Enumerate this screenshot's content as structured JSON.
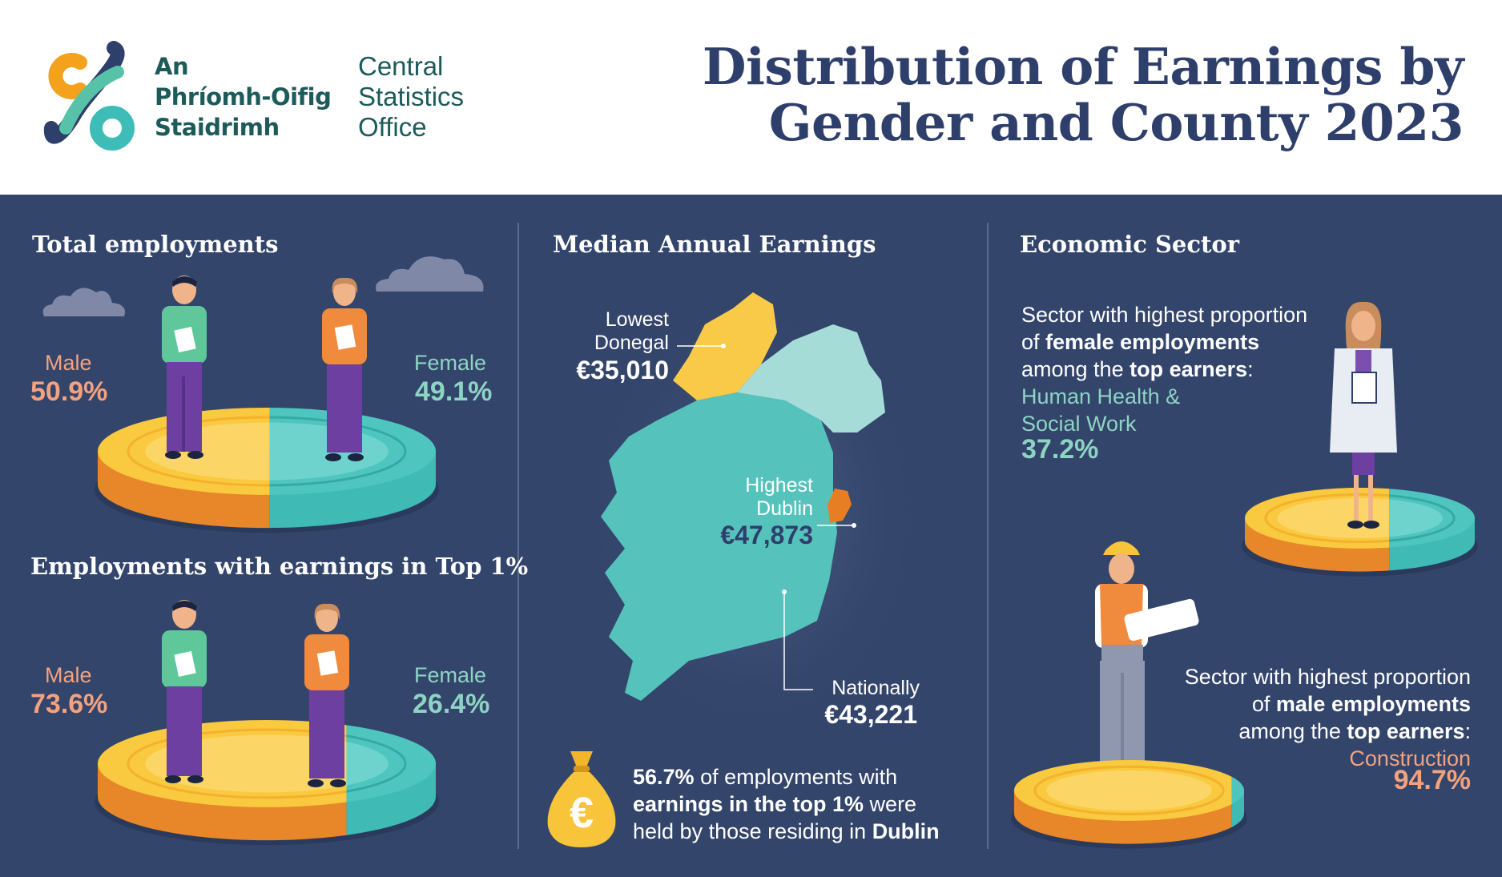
{
  "header": {
    "logo_irish": [
      "An",
      "Phríomh-Oifig",
      "Staidrimh"
    ],
    "logo_english": [
      "Central",
      "Statistics",
      "Office"
    ],
    "title_line1": "Distribution of Earnings by",
    "title_line2": "Gender and County 2023"
  },
  "total_employments": {
    "title": "Total employments",
    "male_label": "Male",
    "male_value": "50.9%",
    "male_share": 0.509,
    "female_label": "Female",
    "female_value": "49.1%",
    "female_share": 0.491
  },
  "top1": {
    "title": "Employments with earnings in Top 1%",
    "male_label": "Male",
    "male_value": "73.6%",
    "male_share": 0.736,
    "female_label": "Female",
    "female_value": "26.4%",
    "female_share": 0.264
  },
  "median": {
    "title": "Median Annual Earnings",
    "lowest_label": "Lowest",
    "lowest_county": "Donegal",
    "lowest_value": "€35,010",
    "highest_label": "Highest",
    "highest_county": "Dublin",
    "highest_value": "€47,873",
    "national_label": "Nationally",
    "national_value": "€43,221",
    "note_pct": "56.7%",
    "note_text1": " of employments with",
    "note_bold": "earnings in the top 1%",
    "note_text2": " were",
    "note_text3": "held by those residing in ",
    "note_county": "Dublin",
    "euro_symbol": "€"
  },
  "sector": {
    "title": "Economic Sector",
    "female_line1": "Sector with highest proportion",
    "female_line2a": "of ",
    "female_line2b": "female employments",
    "female_line3a": "among the ",
    "female_line3b": "top earners",
    "female_line3c": ":",
    "female_sector_line1": "Human Health &",
    "female_sector_line2": "Social Work",
    "female_value": "37.2%",
    "female_share": 0.372,
    "male_line1": "Sector with highest proportion",
    "male_line2a": "of ",
    "male_line2b": "male employments",
    "male_line3a": "among the ",
    "male_line3b": "top earners",
    "male_line3c": ":",
    "male_sector": "Construction",
    "male_value": "94.7%",
    "male_share": 0.947
  },
  "colors": {
    "navy": "#33456b",
    "coin_yellow": "#f9c93f",
    "coin_orange": "#e8862a",
    "coin_teal": "#3fbab4",
    "accent_orange": "#f4a27e",
    "accent_teal": "#8ed4c4",
    "map_teal": "#55c3bc",
    "map_light": "#a5dcd8",
    "map_yellow": "#f8ca48",
    "map_dublin": "#e87e23"
  }
}
